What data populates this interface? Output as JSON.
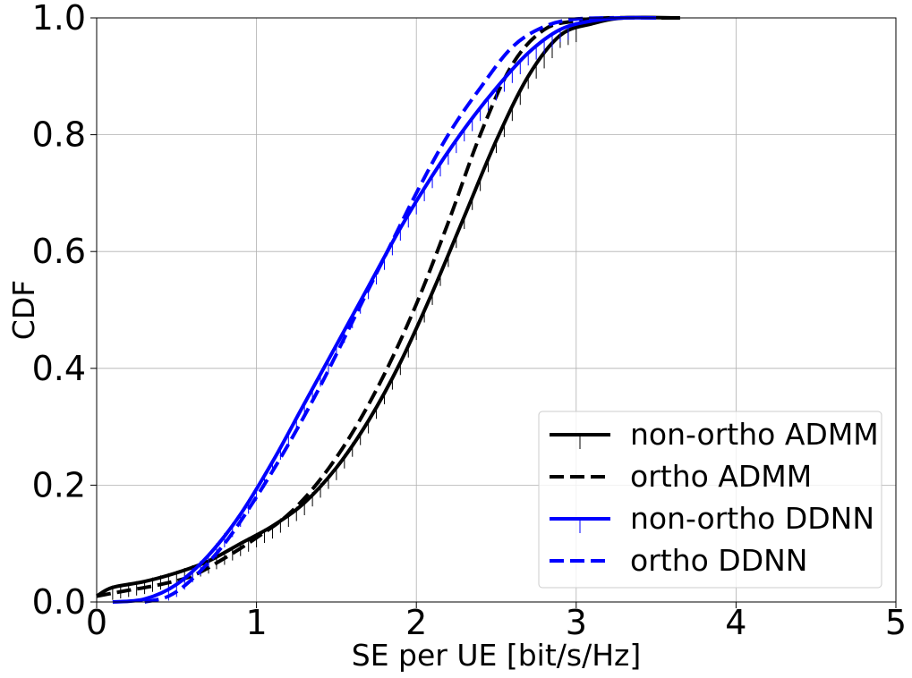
{
  "chart_data": {
    "type": "line",
    "xlabel": "SE per UE [bit/s/Hz]",
    "ylabel": "CDF",
    "xlim": [
      0,
      5
    ],
    "ylim": [
      0,
      1
    ],
    "xticks": [
      "0",
      "1",
      "2",
      "3",
      "4",
      "5"
    ],
    "yticks": [
      "0.0",
      "0.2",
      "0.4",
      "0.6",
      "0.8",
      "1.0"
    ],
    "grid": true,
    "legend_position": "bottom-right",
    "series": [
      {
        "name": "non-ortho ADMM",
        "color": "#000000",
        "style": "solid",
        "error_bars": true,
        "points": [
          [
            0.0,
            0.01
          ],
          [
            0.1,
            0.025
          ],
          [
            0.3,
            0.035
          ],
          [
            0.5,
            0.05
          ],
          [
            0.7,
            0.07
          ],
          [
            0.9,
            0.1
          ],
          [
            1.1,
            0.13
          ],
          [
            1.3,
            0.17
          ],
          [
            1.5,
            0.23
          ],
          [
            1.7,
            0.31
          ],
          [
            1.9,
            0.41
          ],
          [
            2.1,
            0.53
          ],
          [
            2.3,
            0.66
          ],
          [
            2.5,
            0.79
          ],
          [
            2.7,
            0.9
          ],
          [
            2.9,
            0.97
          ],
          [
            3.1,
            0.99
          ],
          [
            3.3,
            1.0
          ],
          [
            3.65,
            1.0
          ]
        ]
      },
      {
        "name": "ortho ADMM",
        "color": "#000000",
        "style": "dashed",
        "error_bars": false,
        "points": [
          [
            0.0,
            0.01
          ],
          [
            0.2,
            0.02
          ],
          [
            0.4,
            0.03
          ],
          [
            0.6,
            0.045
          ],
          [
            0.8,
            0.075
          ],
          [
            1.0,
            0.11
          ],
          [
            1.2,
            0.15
          ],
          [
            1.4,
            0.21
          ],
          [
            1.6,
            0.29
          ],
          [
            1.8,
            0.39
          ],
          [
            2.0,
            0.51
          ],
          [
            2.2,
            0.65
          ],
          [
            2.4,
            0.8
          ],
          [
            2.6,
            0.92
          ],
          [
            2.8,
            0.98
          ],
          [
            3.0,
            0.995
          ],
          [
            3.2,
            1.0
          ],
          [
            3.6,
            1.0
          ]
        ]
      },
      {
        "name": "non-ortho DDNN",
        "color": "#0000ff",
        "style": "solid",
        "error_bars": true,
        "points": [
          [
            0.1,
            0.0
          ],
          [
            0.3,
            0.005
          ],
          [
            0.5,
            0.03
          ],
          [
            0.7,
            0.08
          ],
          [
            0.9,
            0.15
          ],
          [
            1.1,
            0.24
          ],
          [
            1.3,
            0.34
          ],
          [
            1.5,
            0.44
          ],
          [
            1.7,
            0.54
          ],
          [
            1.9,
            0.64
          ],
          [
            2.1,
            0.73
          ],
          [
            2.3,
            0.81
          ],
          [
            2.5,
            0.88
          ],
          [
            2.7,
            0.94
          ],
          [
            2.9,
            0.98
          ],
          [
            3.1,
            0.995
          ],
          [
            3.3,
            1.0
          ],
          [
            3.5,
            1.0
          ]
        ]
      },
      {
        "name": "ortho DDNN",
        "color": "#0000ff",
        "style": "dashed",
        "error_bars": false,
        "points": [
          [
            0.3,
            0.0
          ],
          [
            0.45,
            0.01
          ],
          [
            0.6,
            0.04
          ],
          [
            0.8,
            0.1
          ],
          [
            1.0,
            0.18
          ],
          [
            1.2,
            0.27
          ],
          [
            1.4,
            0.37
          ],
          [
            1.6,
            0.48
          ],
          [
            1.8,
            0.59
          ],
          [
            2.0,
            0.7
          ],
          [
            2.2,
            0.8
          ],
          [
            2.4,
            0.88
          ],
          [
            2.6,
            0.95
          ],
          [
            2.8,
            0.985
          ],
          [
            3.0,
            0.998
          ],
          [
            3.3,
            1.0
          ]
        ]
      }
    ]
  }
}
